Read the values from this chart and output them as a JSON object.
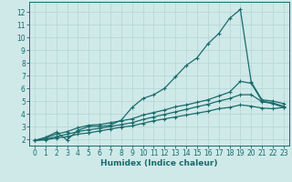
{
  "xlabel": "Humidex (Indice chaleur)",
  "ylabel": "",
  "xlim": [
    -0.5,
    23.5
  ],
  "ylim": [
    1.5,
    12.8
  ],
  "xticks": [
    0,
    1,
    2,
    3,
    4,
    5,
    6,
    7,
    8,
    9,
    10,
    11,
    12,
    13,
    14,
    15,
    16,
    17,
    18,
    19,
    20,
    21,
    22,
    23
  ],
  "yticks": [
    2,
    3,
    4,
    5,
    6,
    7,
    8,
    9,
    10,
    11,
    12
  ],
  "background_color": "#cfe9e9",
  "line_color": "#1a6b6b",
  "grid_color": "#b8d8d8",
  "lines": [
    {
      "x": [
        0,
        1,
        2,
        3,
        4,
        5,
        6,
        7,
        8,
        9,
        10,
        11,
        12,
        13,
        14,
        15,
        16,
        17,
        18,
        19,
        20,
        21,
        22,
        23
      ],
      "y": [
        1.9,
        2.15,
        2.55,
        1.95,
        2.7,
        3.0,
        3.0,
        3.1,
        3.5,
        4.5,
        5.2,
        5.5,
        6.0,
        6.9,
        7.8,
        8.4,
        9.5,
        10.3,
        11.5,
        12.2,
        6.5,
        5.1,
        5.0,
        4.8
      ]
    },
    {
      "x": [
        0,
        1,
        2,
        3,
        4,
        5,
        6,
        7,
        8,
        9,
        10,
        11,
        12,
        13,
        14,
        15,
        16,
        17,
        18,
        19,
        20,
        21,
        22,
        23
      ],
      "y": [
        1.9,
        2.1,
        2.4,
        2.6,
        2.9,
        3.1,
        3.15,
        3.3,
        3.45,
        3.6,
        3.9,
        4.1,
        4.3,
        4.55,
        4.7,
        4.9,
        5.1,
        5.4,
        5.7,
        6.55,
        6.4,
        5.0,
        4.85,
        4.6
      ]
    },
    {
      "x": [
        0,
        1,
        2,
        3,
        4,
        5,
        6,
        7,
        8,
        9,
        10,
        11,
        12,
        13,
        14,
        15,
        16,
        17,
        18,
        19,
        20,
        21,
        22,
        23
      ],
      "y": [
        1.9,
        2.0,
        2.2,
        2.4,
        2.6,
        2.75,
        2.85,
        3.0,
        3.15,
        3.3,
        3.55,
        3.75,
        3.95,
        4.15,
        4.35,
        4.55,
        4.75,
        5.0,
        5.2,
        5.5,
        5.5,
        4.95,
        4.8,
        4.5
      ]
    },
    {
      "x": [
        0,
        1,
        2,
        3,
        4,
        5,
        6,
        7,
        8,
        9,
        10,
        11,
        12,
        13,
        14,
        15,
        16,
        17,
        18,
        19,
        20,
        21,
        22,
        23
      ],
      "y": [
        1.9,
        1.95,
        2.1,
        2.2,
        2.4,
        2.5,
        2.65,
        2.8,
        2.95,
        3.05,
        3.25,
        3.45,
        3.6,
        3.75,
        3.9,
        4.05,
        4.2,
        4.4,
        4.5,
        4.7,
        4.6,
        4.45,
        4.4,
        4.5
      ]
    }
  ],
  "marker": "+",
  "markersize": 3.5,
  "linewidth": 0.9,
  "tick_fontsize": 5.5,
  "label_fontsize": 6.5
}
